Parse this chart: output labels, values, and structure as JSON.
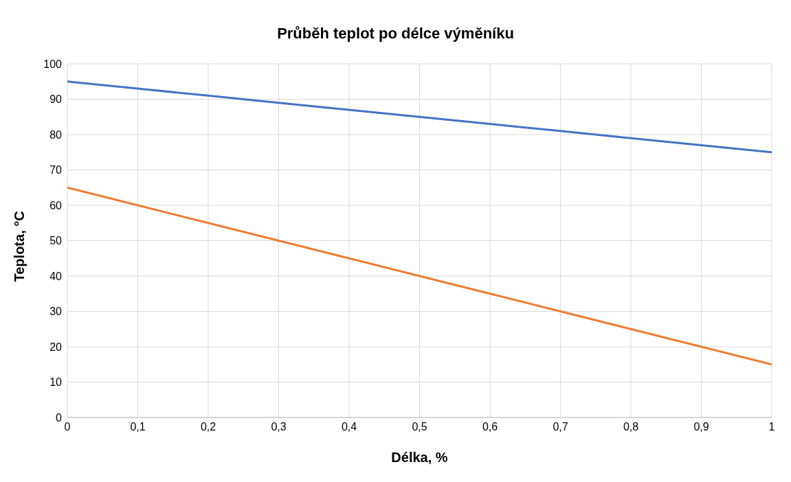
{
  "chart_data": {
    "type": "line",
    "title": "Průběh teplot po délce výměníku",
    "xlabel": "Délka, %",
    "ylabel": "Teplota, °C",
    "x": [
      0,
      0.1,
      0.2,
      0.3,
      0.4,
      0.5,
      0.6,
      0.7,
      0.8,
      0.9,
      1
    ],
    "series": [
      {
        "color": "#4472c4",
        "values": [
          95,
          93,
          91,
          89,
          87,
          85,
          83,
          81,
          79,
          77,
          75
        ]
      },
      {
        "color": "#ed7d31",
        "values": [
          65,
          60,
          55,
          50,
          45,
          40,
          35,
          30,
          25,
          20,
          15
        ]
      }
    ],
    "xlim": [
      0,
      1
    ],
    "xticks": [
      0,
      {
        "value": 0.1,
        "label": "0,1"
      },
      {
        "value": 0.2,
        "label": "0,2"
      },
      {
        "value": 0.3,
        "label": "0,3"
      },
      {
        "value": 0.4,
        "label": "0,4"
      },
      {
        "value": 0.5,
        "label": "0,5"
      },
      {
        "value": 0.6,
        "label": "0,6"
      },
      {
        "value": 0.7,
        "label": "0,7"
      },
      {
        "value": 0.8,
        "label": "0,8"
      },
      {
        "value": 0.9,
        "label": "0,9"
      },
      1
    ],
    "ylim": [
      0,
      100
    ],
    "yticks": [
      0,
      10,
      20,
      30,
      40,
      50,
      60,
      70,
      80,
      90,
      100
    ],
    "grid": true,
    "marker": "none",
    "line_style": "solid"
  }
}
